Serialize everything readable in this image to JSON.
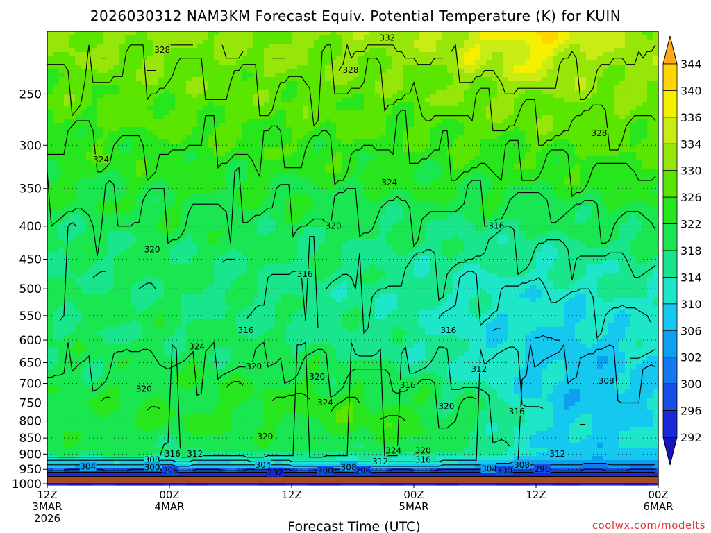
{
  "chart_data": {
    "type": "heatmap",
    "title": "2026030312 NAM3KM Forecast Equiv. Potential Temperature (K) for KUIN",
    "xlabel": "Forecast Time (UTC)",
    "ylabel": "",
    "x_ticks": [
      {
        "hours": 0,
        "line1": "12Z",
        "line2": "3MAR",
        "line3": "2026"
      },
      {
        "hours": 12,
        "line1": "00Z",
        "line2": "4MAR",
        "line3": ""
      },
      {
        "hours": 24,
        "line1": "12Z",
        "line2": "",
        "line3": ""
      },
      {
        "hours": 36,
        "line1": "00Z",
        "line2": "5MAR",
        "line3": ""
      },
      {
        "hours": 48,
        "line1": "12Z",
        "line2": "",
        "line3": ""
      },
      {
        "hours": 60,
        "line1": "00Z",
        "line2": "6MAR",
        "line3": ""
      }
    ],
    "xlim_hours": [
      0,
      60
    ],
    "y_ticks": [
      250,
      300,
      350,
      400,
      450,
      500,
      550,
      600,
      650,
      700,
      750,
      800,
      850,
      900,
      950,
      1000
    ],
    "y_scale": "log",
    "ylim": [
      1000,
      200
    ],
    "ground_level_hPa": 975,
    "colorbar": {
      "labels": [
        344,
        340,
        336,
        334,
        330,
        326,
        322,
        318,
        314,
        310,
        306,
        302,
        300,
        296,
        292
      ],
      "colors": [
        "#ffa818",
        "#ffd600",
        "#f4f000",
        "#c8ec14",
        "#96e60a",
        "#5ae600",
        "#28e61e",
        "#19e650",
        "#19e68c",
        "#1ee6c8",
        "#14c8f0",
        "#0ea0f0",
        "#1478f0",
        "#1450e6",
        "#1a2ad8",
        "#1414c0"
      ]
    },
    "profile": {
      "levels_hPa": [
        1000,
        975,
        960,
        950,
        925,
        900,
        880,
        850,
        800,
        750,
        700,
        650,
        600,
        550,
        500,
        450,
        400,
        350,
        300,
        250,
        200
      ],
      "times_hours": [
        0,
        12,
        24,
        30,
        36,
        42,
        48,
        54,
        60
      ],
      "theta_e_K": [
        [
          292,
          292,
          294,
          304,
          310,
          318,
          319,
          320,
          321,
          321,
          320,
          319,
          319,
          319,
          318,
          318,
          319,
          322,
          324,
          327,
          331
        ],
        [
          292,
          292,
          294,
          304,
          310,
          318,
          319,
          320,
          322,
          322,
          321,
          320,
          319,
          319,
          318,
          319,
          320,
          322,
          325,
          328,
          331
        ],
        [
          292,
          292,
          294,
          304,
          311,
          317,
          319,
          320,
          322,
          323,
          322,
          320,
          318,
          317,
          317,
          318,
          320,
          322,
          325,
          328,
          331
        ],
        [
          292,
          292,
          294,
          304,
          311,
          317,
          320,
          322,
          324,
          324,
          321,
          318,
          317,
          316,
          316,
          318,
          319,
          322,
          325,
          328,
          332
        ],
        [
          292,
          292,
          294,
          304,
          312,
          317,
          320,
          322,
          323,
          322,
          319,
          317,
          315,
          315,
          315,
          317,
          319,
          322,
          325,
          328,
          333
        ],
        [
          292,
          292,
          294,
          304,
          310,
          316,
          318,
          318,
          319,
          318,
          315,
          313,
          312,
          312,
          313,
          315,
          318,
          322,
          326,
          330,
          336
        ],
        [
          292,
          292,
          294,
          300,
          306,
          310,
          311,
          311,
          311,
          310,
          309,
          309,
          309,
          310,
          312,
          315,
          318,
          322,
          326,
          331,
          340
        ],
        [
          292,
          292,
          294,
          300,
          305,
          308,
          308,
          308,
          308,
          307,
          307,
          308,
          309,
          311,
          313,
          316,
          319,
          323,
          327,
          330,
          334
        ],
        [
          292,
          292,
          294,
          300,
          306,
          309,
          310,
          310,
          310,
          310,
          310,
          311,
          312,
          313,
          315,
          317,
          320,
          323,
          327,
          330,
          333
        ]
      ]
    },
    "contour_labels": [
      {
        "text": "332",
        "hours": 33.4,
        "hPa": 205
      },
      {
        "text": "328",
        "hours": 11.3,
        "hPa": 214
      },
      {
        "text": "328",
        "hours": 29.8,
        "hPa": 230
      },
      {
        "text": "328",
        "hours": 54.2,
        "hPa": 288
      },
      {
        "text": "324",
        "hours": 5.3,
        "hPa": 316
      },
      {
        "text": "324",
        "hours": 33.6,
        "hPa": 343
      },
      {
        "text": "320",
        "hours": 28.1,
        "hPa": 400
      },
      {
        "text": "316",
        "hours": 44.1,
        "hPa": 400
      },
      {
        "text": "320",
        "hours": 10.3,
        "hPa": 435
      },
      {
        "text": "316",
        "hours": 25.3,
        "hPa": 475
      },
      {
        "text": "316",
        "hours": 19.5,
        "hPa": 580
      },
      {
        "text": "316",
        "hours": 39.4,
        "hPa": 580
      },
      {
        "text": "324",
        "hours": 14.7,
        "hPa": 615
      },
      {
        "text": "320",
        "hours": 20.3,
        "hPa": 660
      },
      {
        "text": "320",
        "hours": 26.5,
        "hPa": 685
      },
      {
        "text": "312",
        "hours": 42.4,
        "hPa": 666
      },
      {
        "text": "316",
        "hours": 35.4,
        "hPa": 705
      },
      {
        "text": "308",
        "hours": 54.9,
        "hPa": 695
      },
      {
        "text": "320",
        "hours": 9.5,
        "hPa": 715
      },
      {
        "text": "324",
        "hours": 27.3,
        "hPa": 750
      },
      {
        "text": "320",
        "hours": 39.2,
        "hPa": 760
      },
      {
        "text": "316",
        "hours": 46.1,
        "hPa": 775
      },
      {
        "text": "320",
        "hours": 21.4,
        "hPa": 847
      },
      {
        "text": "324",
        "hours": 34.0,
        "hPa": 890
      },
      {
        "text": "316",
        "hours": 12.3,
        "hPa": 900
      },
      {
        "text": "312",
        "hours": 14.5,
        "hPa": 900
      },
      {
        "text": "320",
        "hours": 36.9,
        "hPa": 890
      },
      {
        "text": "316",
        "hours": 36.9,
        "hPa": 920
      },
      {
        "text": "312",
        "hours": 50.1,
        "hPa": 900
      },
      {
        "text": "308",
        "hours": 10.3,
        "hPa": 920
      },
      {
        "text": "300",
        "hours": 10.3,
        "hPa": 945
      },
      {
        "text": "304",
        "hours": 4.0,
        "hPa": 943
      },
      {
        "text": "296",
        "hours": 12.1,
        "hPa": 957
      },
      {
        "text": "304",
        "hours": 21.2,
        "hPa": 937
      },
      {
        "text": "292",
        "hours": 22.4,
        "hPa": 963
      },
      {
        "text": "300",
        "hours": 27.3,
        "hPa": 957
      },
      {
        "text": "308",
        "hours": 29.6,
        "hPa": 945
      },
      {
        "text": "296",
        "hours": 31.0,
        "hPa": 957
      },
      {
        "text": "312",
        "hours": 32.7,
        "hPa": 925
      },
      {
        "text": "304",
        "hours": 43.4,
        "hPa": 950
      },
      {
        "text": "300",
        "hours": 44.9,
        "hPa": 957
      },
      {
        "text": "308",
        "hours": 46.6,
        "hPa": 937
      },
      {
        "text": "296",
        "hours": 48.6,
        "hPa": 951
      }
    ]
  },
  "credit": "coolwx.com/modelts"
}
